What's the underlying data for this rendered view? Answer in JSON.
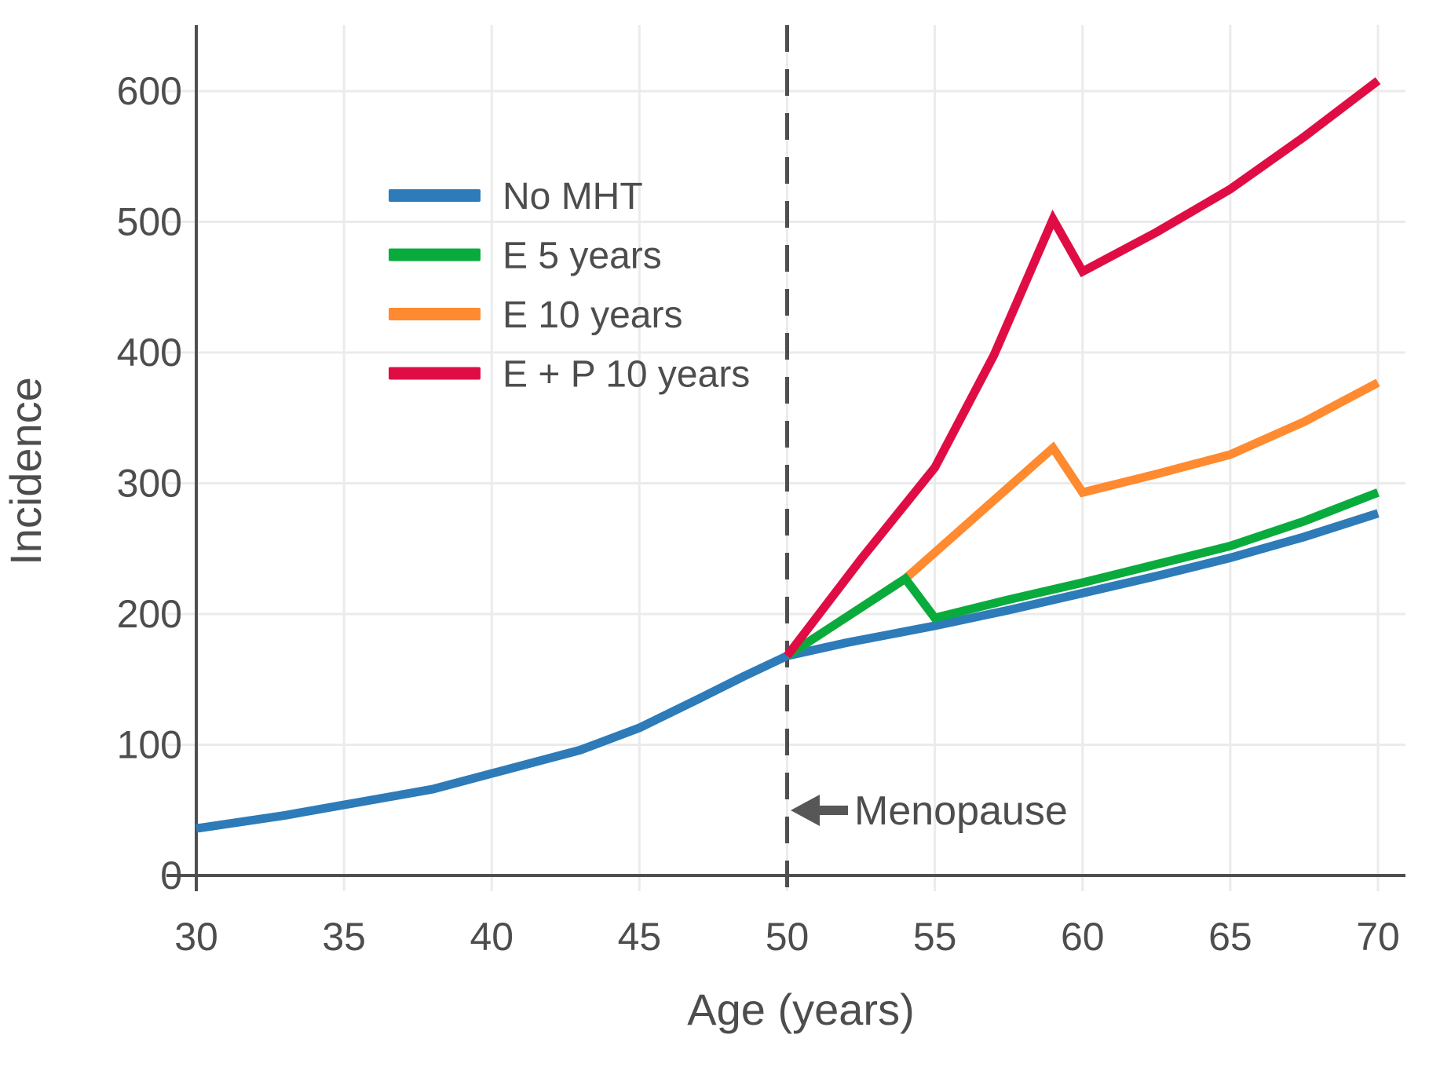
{
  "chart_data": {
    "type": "line",
    "title": "",
    "xlabel": "Age (years)",
    "ylabel": "Incidence",
    "xlim": [
      30,
      70
    ],
    "ylim": [
      0,
      650
    ],
    "x_ticks": [
      30,
      35,
      40,
      45,
      50,
      55,
      60,
      65,
      70
    ],
    "y_ticks": [
      0,
      100,
      200,
      300,
      400,
      500,
      600
    ],
    "grid": true,
    "legend_position": "upper-left-inside",
    "colors": {
      "axis": "#4f4f4f",
      "grid": "#ebebeb",
      "text": "#4d4d4d"
    },
    "annotation": {
      "label": "Menopause",
      "x": 50,
      "style": "dashed-vertical-line-with-left-arrow"
    },
    "series": [
      {
        "name": "No MHT",
        "color": "#2d7bb8",
        "x": [
          30,
          33,
          35,
          38,
          40,
          43,
          45,
          47,
          48.5,
          50,
          52,
          55,
          57.5,
          60,
          62.5,
          65,
          67.5,
          70
        ],
        "y": [
          36,
          46,
          54,
          66,
          78,
          96,
          113,
          135,
          152,
          168,
          178,
          191,
          203,
          216,
          229,
          243,
          259,
          277
        ]
      },
      {
        "name": "E 5 years",
        "color": "#0aab3d",
        "x": [
          50,
          54,
          55,
          57.5,
          60,
          62.5,
          65,
          67.5,
          70
        ],
        "y": [
          168,
          227,
          197,
          211,
          224,
          238,
          252,
          271,
          293
        ]
      },
      {
        "name": "E 10 years",
        "color": "#ff8a2f",
        "x": [
          50,
          54,
          59,
          60,
          62.5,
          65,
          67.5,
          70
        ],
        "y": [
          168,
          227,
          327,
          293,
          307,
          322,
          347,
          377
        ]
      },
      {
        "name": "E + P 10 years",
        "color": "#e00d45",
        "x": [
          50,
          52.5,
          55,
          57,
          59,
          60,
          62.5,
          65,
          67.5,
          70
        ],
        "y": [
          168,
          242,
          312,
          398,
          502,
          462,
          492,
          525,
          565,
          608
        ]
      }
    ]
  }
}
